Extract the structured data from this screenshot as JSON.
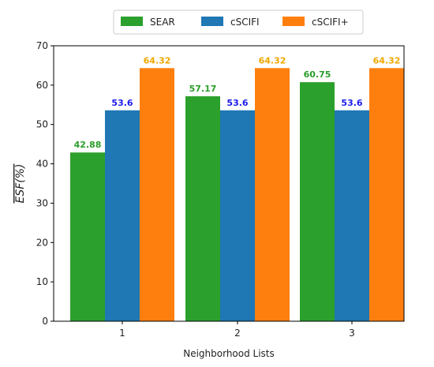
{
  "chart_data": {
    "type": "bar",
    "title": "",
    "xlabel": "Neighborhood Lists",
    "ylabel": "ESF(%)",
    "categories": [
      "1",
      "2",
      "3"
    ],
    "series": [
      {
        "name": "SEAR",
        "color": "#2ca02c",
        "label_color": "#2a9d2a",
        "values": [
          42.88,
          57.17,
          60.75
        ]
      },
      {
        "name": "cSCIFI",
        "color": "#1f77b4",
        "label_color": "#1a1aee",
        "values": [
          53.6,
          53.6,
          53.6
        ]
      },
      {
        "name": "cSCIFI+",
        "color": "#ff7f0e",
        "label_color": "#f0a800",
        "values": [
          64.32,
          64.32,
          64.32
        ]
      }
    ],
    "data_labels": [
      [
        "42.88",
        "57.17",
        "60.75"
      ],
      [
        "53.6",
        "53.6",
        "53.6"
      ],
      [
        "64.32",
        "64.32",
        "64.32"
      ]
    ],
    "ylim": [
      0,
      70
    ],
    "yticks": [
      "0",
      "10",
      "20",
      "30",
      "40",
      "50",
      "60",
      "70"
    ],
    "grid": false,
    "legend_position": "top-center"
  }
}
